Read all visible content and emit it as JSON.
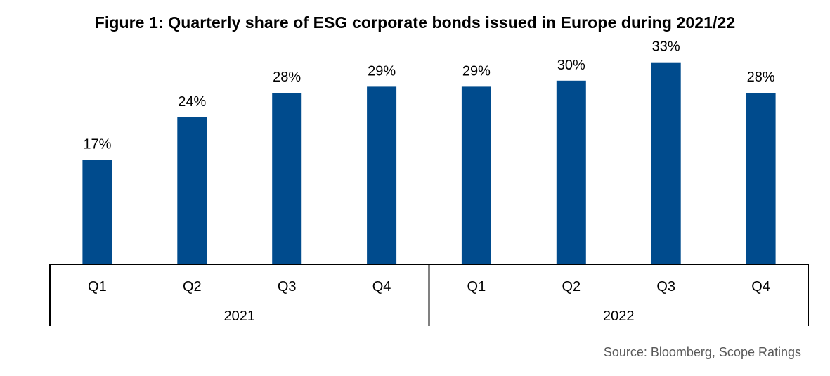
{
  "title": "Figure 1: Quarterly share of ESG corporate bonds issued in Europe during 2021/22",
  "source": "Source: Bloomberg, Scope Ratings",
  "colors": {
    "bar": "#004b8d",
    "axis": "#000000",
    "source_text": "#595959"
  },
  "chart_data": {
    "type": "bar",
    "title": "Figure 1: Quarterly share of ESG corporate bonds issued in Europe during 2021/22",
    "xlabel": "",
    "ylabel": "",
    "ylim": [
      0,
      40
    ],
    "grid": false,
    "legend": "none",
    "groups": [
      "2021",
      "2022"
    ],
    "categories": [
      "Q1",
      "Q2",
      "Q3",
      "Q4",
      "Q1",
      "Q2",
      "Q3",
      "Q4"
    ],
    "category_groups": [
      "2021",
      "2021",
      "2021",
      "2021",
      "2022",
      "2022",
      "2022",
      "2022"
    ],
    "values": [
      17,
      24,
      28,
      29,
      29,
      30,
      33,
      28
    ],
    "labels": [
      "17%",
      "24%",
      "28%",
      "29%",
      "29%",
      "30%",
      "33%",
      "28%"
    ],
    "unit": "%"
  }
}
